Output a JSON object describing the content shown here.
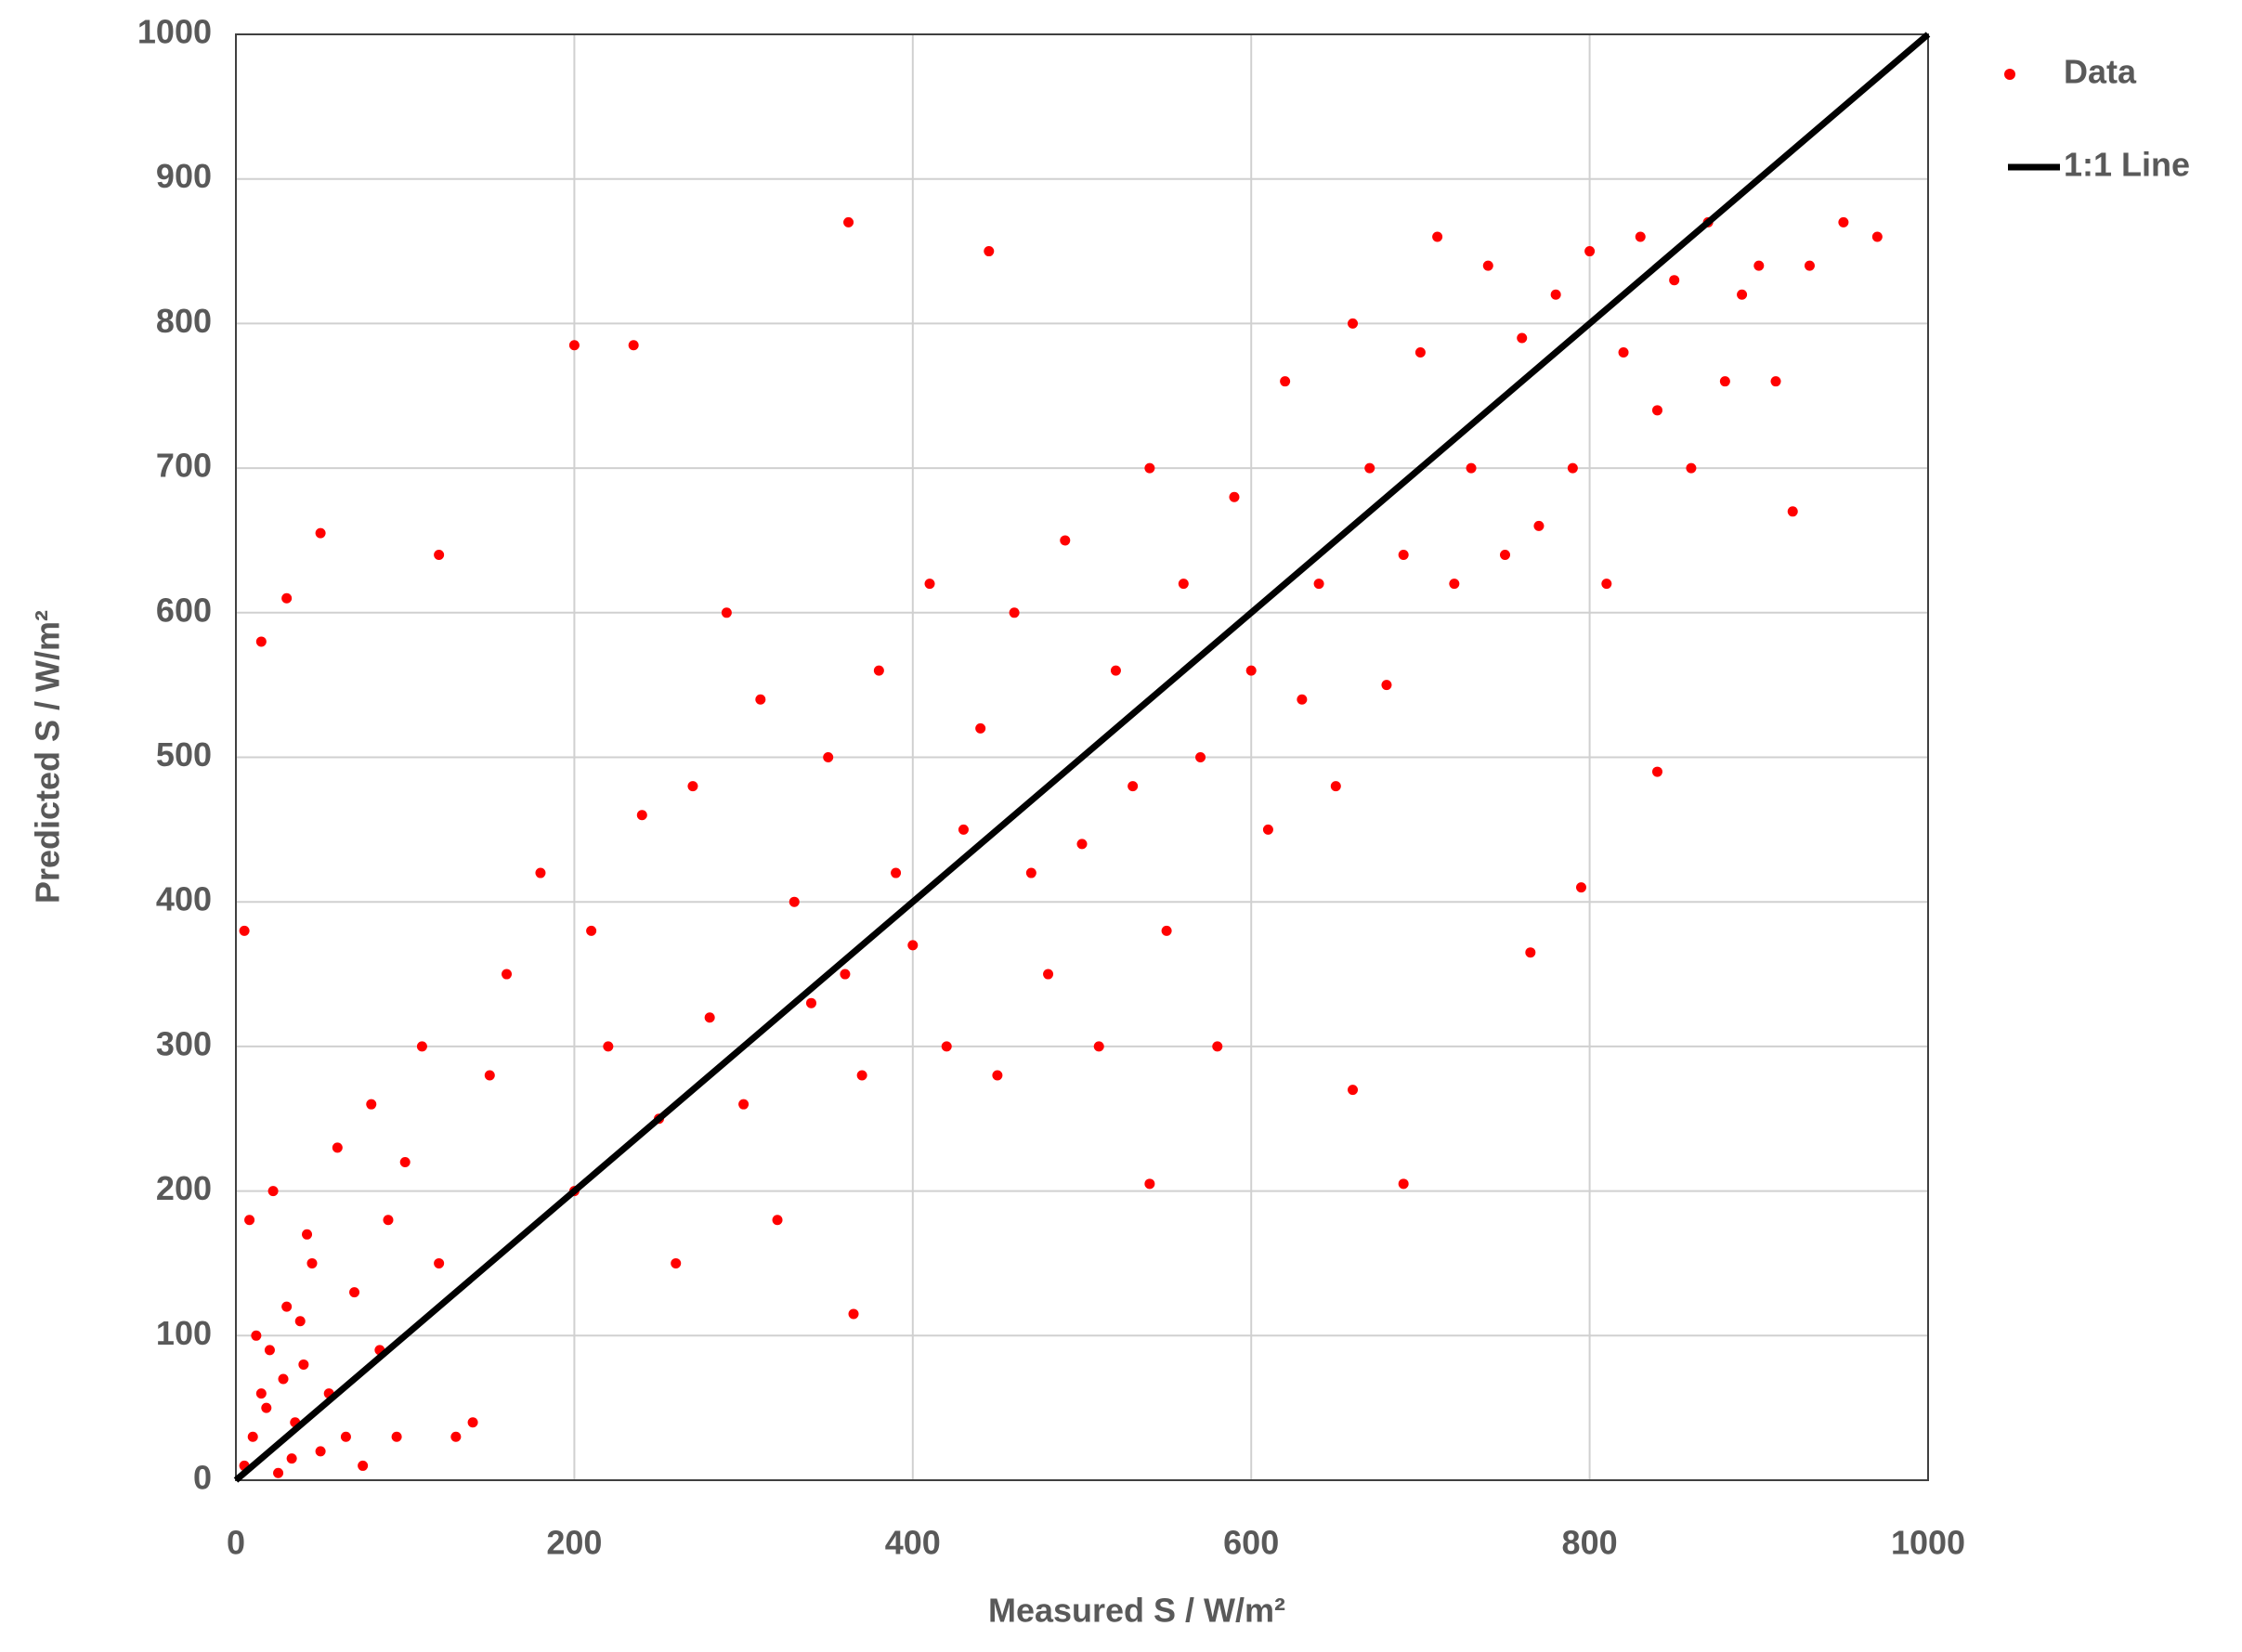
{
  "chart_data": {
    "type": "scatter",
    "xlabel": "Measured S / W/m²",
    "ylabel": "Predicted S / W/m²",
    "xlim": [
      0,
      1000
    ],
    "xticks": [
      0,
      200,
      400,
      600,
      800,
      1000
    ],
    "ylim": [
      0,
      1000
    ],
    "yticks": [
      0,
      100,
      200,
      300,
      400,
      500,
      600,
      700,
      800,
      900,
      1000
    ],
    "grid": true,
    "legend": "right",
    "series": [
      {
        "name": "Data",
        "type": "scatter",
        "color": "#ff0000",
        "x": [
          5,
          10,
          15,
          20,
          25,
          30,
          35,
          40,
          45,
          50,
          8,
          12,
          18,
          22,
          28,
          33,
          38,
          42,
          55,
          60,
          65,
          70,
          75,
          80,
          85,
          90,
          95,
          100,
          110,
          120,
          130,
          140,
          150,
          160,
          180,
          200,
          210,
          220,
          240,
          250,
          260,
          270,
          280,
          290,
          300,
          310,
          320,
          330,
          340,
          350,
          360,
          370,
          380,
          390,
          400,
          410,
          420,
          430,
          440,
          450,
          460,
          470,
          480,
          490,
          500,
          510,
          520,
          530,
          540,
          550,
          560,
          570,
          580,
          590,
          600,
          610,
          620,
          630,
          640,
          650,
          660,
          670,
          680,
          690,
          700,
          710,
          720,
          730,
          740,
          750,
          760,
          770,
          780,
          790,
          800,
          810,
          820,
          830,
          840,
          850,
          860,
          870,
          880,
          890,
          900,
          910,
          920,
          930,
          950,
          970,
          5,
          15,
          30,
          50,
          120,
          200,
          235,
          362,
          445,
          660,
          540,
          690,
          840,
          365,
          765,
          795
        ],
        "values": [
          10,
          30,
          60,
          90,
          5,
          120,
          40,
          80,
          150,
          20,
          180,
          100,
          50,
          200,
          70,
          15,
          110,
          170,
          60,
          230,
          30,
          130,
          10,
          260,
          90,
          180,
          30,
          220,
          300,
          150,
          30,
          40,
          280,
          350,
          420,
          200,
          380,
          300,
          460,
          250,
          150,
          480,
          320,
          600,
          260,
          540,
          180,
          400,
          330,
          500,
          350,
          280,
          560,
          420,
          370,
          620,
          300,
          450,
          520,
          280,
          600,
          420,
          350,
          650,
          440,
          300,
          560,
          480,
          700,
          380,
          620,
          500,
          300,
          680,
          560,
          450,
          760,
          540,
          620,
          480,
          800,
          700,
          550,
          640,
          780,
          860,
          620,
          700,
          840,
          640,
          790,
          660,
          820,
          700,
          850,
          620,
          780,
          860,
          740,
          830,
          700,
          870,
          760,
          820,
          840,
          760,
          670,
          840,
          870,
          860,
          380,
          580,
          610,
          655,
          640,
          785,
          785,
          870,
          850,
          270,
          205,
          205,
          490,
          115,
          365,
          410
        ]
      },
      {
        "name": "1:1 Line",
        "type": "line",
        "color": "#000000",
        "x": [
          0,
          1000
        ],
        "values": [
          0,
          1000
        ]
      }
    ]
  }
}
